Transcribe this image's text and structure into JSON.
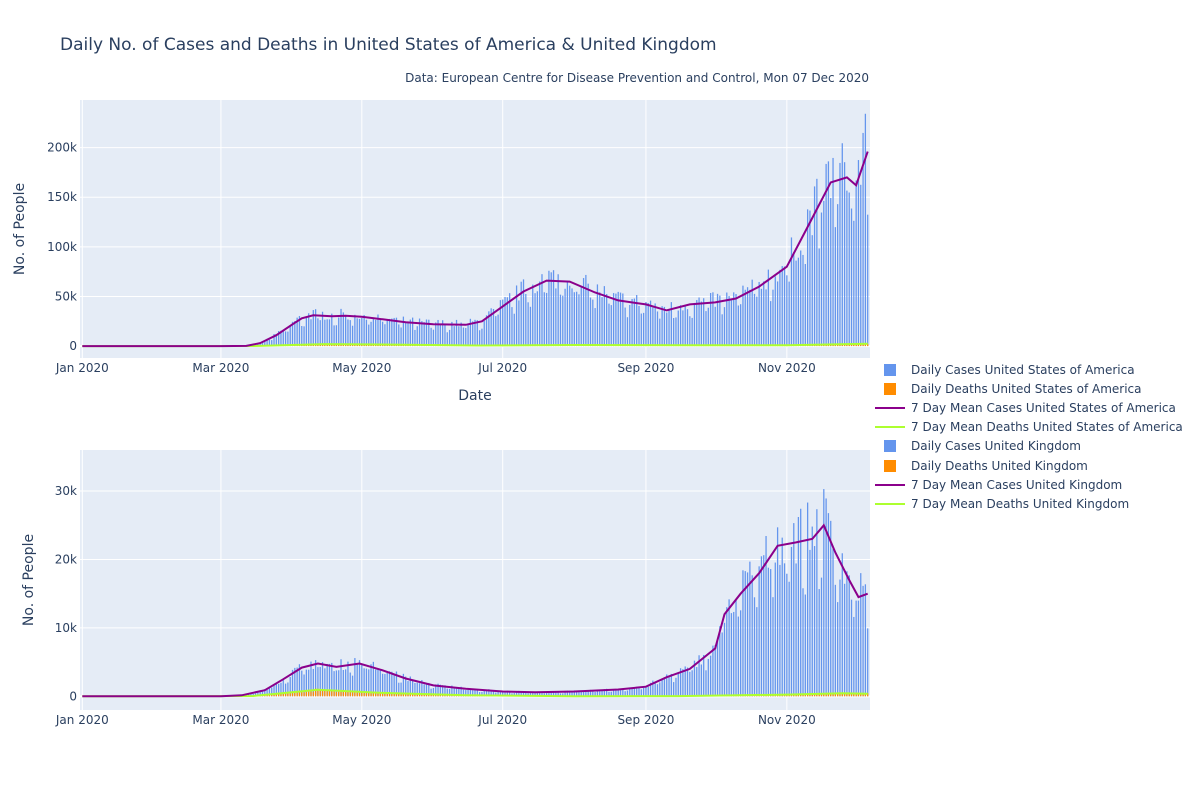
{
  "title": "Daily No. of Cases and Deaths in United States of America & United Kingdom",
  "subtitle": "Data: European Centre for Disease Prevention and Control, Mon 07 Dec 2020",
  "colors": {
    "daily_cases": "#6495ED",
    "daily_deaths": "#FF8C00",
    "mean_cases": "#8B008B",
    "mean_deaths": "#ADFF2F",
    "plot_bg": "#E5ECF6",
    "grid": "#ffffff"
  },
  "legend": [
    {
      "label": "Daily Cases United States of America",
      "kind": "bar",
      "color": "#6495ED"
    },
    {
      "label": "Daily Deaths United States of America",
      "kind": "bar",
      "color": "#FF8C00"
    },
    {
      "label": "7 Day Mean Cases United States of America",
      "kind": "line",
      "color": "#8B008B"
    },
    {
      "label": "7 Day Mean Deaths United States of America",
      "kind": "line",
      "color": "#ADFF2F"
    },
    {
      "label": "Daily Cases United Kingdom",
      "kind": "bar",
      "color": "#6495ED"
    },
    {
      "label": "Daily Deaths United Kingdom",
      "kind": "bar",
      "color": "#FF8C00"
    },
    {
      "label": "7 Day Mean Cases United Kingdom",
      "kind": "line",
      "color": "#8B008B"
    },
    {
      "label": "7 Day Mean Deaths United Kingdom",
      "kind": "line",
      "color": "#ADFF2F"
    }
  ],
  "chart_data": [
    {
      "type": "bar",
      "country": "United States of America",
      "xlabel": "Date",
      "ylabel": "No. of People",
      "xlim": [
        "2019-12-31",
        "2020-12-07"
      ],
      "ylim": [
        -12000,
        248000
      ],
      "x_ticks": [
        {
          "date": "2020-01-01",
          "label": "Jan 2020"
        },
        {
          "date": "2020-03-01",
          "label": "Mar 2020"
        },
        {
          "date": "2020-05-01",
          "label": "May 2020"
        },
        {
          "date": "2020-07-01",
          "label": "Jul 2020"
        },
        {
          "date": "2020-09-01",
          "label": "Sep 2020"
        },
        {
          "date": "2020-11-01",
          "label": "Nov 2020"
        }
      ],
      "y_ticks": [
        {
          "value": 0,
          "label": "0"
        },
        {
          "value": 50000,
          "label": "50k"
        },
        {
          "value": 100000,
          "label": "100k"
        },
        {
          "value": 150000,
          "label": "150k"
        },
        {
          "value": 200000,
          "label": "200k"
        }
      ],
      "mean_cases": [
        [
          "2020-01-01",
          0
        ],
        [
          "2020-02-01",
          0
        ],
        [
          "2020-03-01",
          20
        ],
        [
          "2020-03-12",
          200
        ],
        [
          "2020-03-18",
          3000
        ],
        [
          "2020-03-25",
          11000
        ],
        [
          "2020-04-01",
          22000
        ],
        [
          "2020-04-05",
          28000
        ],
        [
          "2020-04-10",
          31000
        ],
        [
          "2020-04-18",
          30000
        ],
        [
          "2020-04-24",
          30500
        ],
        [
          "2020-05-01",
          29500
        ],
        [
          "2020-05-10",
          27000
        ],
        [
          "2020-05-20",
          24000
        ],
        [
          "2020-06-01",
          22000
        ],
        [
          "2020-06-15",
          21500
        ],
        [
          "2020-06-22",
          25000
        ],
        [
          "2020-07-01",
          40000
        ],
        [
          "2020-07-10",
          55000
        ],
        [
          "2020-07-20",
          66000
        ],
        [
          "2020-07-30",
          65000
        ],
        [
          "2020-08-10",
          54000
        ],
        [
          "2020-08-20",
          46000
        ],
        [
          "2020-09-01",
          42000
        ],
        [
          "2020-09-10",
          36000
        ],
        [
          "2020-09-20",
          42000
        ],
        [
          "2020-10-01",
          44000
        ],
        [
          "2020-10-10",
          48000
        ],
        [
          "2020-10-20",
          60000
        ],
        [
          "2020-11-01",
          80000
        ],
        [
          "2020-11-10",
          120000
        ],
        [
          "2020-11-20",
          165000
        ],
        [
          "2020-11-27",
          170000
        ],
        [
          "2020-12-01",
          162000
        ],
        [
          "2020-12-06",
          196000
        ]
      ],
      "mean_deaths": [
        [
          "2020-01-01",
          0
        ],
        [
          "2020-03-15",
          50
        ],
        [
          "2020-04-15",
          2000
        ],
        [
          "2020-05-15",
          1500
        ],
        [
          "2020-06-20",
          600
        ],
        [
          "2020-08-01",
          1100
        ],
        [
          "2020-09-20",
          750
        ],
        [
          "2020-11-01",
          900
        ],
        [
          "2020-12-06",
          2300
        ]
      ],
      "daily_deaths_peak": 4500
    },
    {
      "type": "bar",
      "country": "United Kingdom",
      "xlabel": "",
      "ylabel": "No. of People",
      "xlim": [
        "2019-12-31",
        "2020-12-07"
      ],
      "ylim": [
        -2000,
        36000
      ],
      "x_ticks": [
        {
          "date": "2020-01-01",
          "label": "Jan 2020"
        },
        {
          "date": "2020-03-01",
          "label": "Mar 2020"
        },
        {
          "date": "2020-05-01",
          "label": "May 2020"
        },
        {
          "date": "2020-07-01",
          "label": "Jul 2020"
        },
        {
          "date": "2020-09-01",
          "label": "Sep 2020"
        },
        {
          "date": "2020-11-01",
          "label": "Nov 2020"
        }
      ],
      "y_ticks": [
        {
          "value": 0,
          "label": "0"
        },
        {
          "value": 10000,
          "label": "10k"
        },
        {
          "value": 20000,
          "label": "20k"
        },
        {
          "value": 30000,
          "label": "30k"
        }
      ],
      "mean_cases": [
        [
          "2020-01-01",
          0
        ],
        [
          "2020-03-01",
          10
        ],
        [
          "2020-03-10",
          150
        ],
        [
          "2020-03-20",
          900
        ],
        [
          "2020-03-28",
          2500
        ],
        [
          "2020-04-05",
          4200
        ],
        [
          "2020-04-12",
          4800
        ],
        [
          "2020-04-20",
          4300
        ],
        [
          "2020-04-30",
          4800
        ],
        [
          "2020-05-10",
          3800
        ],
        [
          "2020-05-20",
          2600
        ],
        [
          "2020-06-01",
          1600
        ],
        [
          "2020-06-15",
          1100
        ],
        [
          "2020-07-01",
          700
        ],
        [
          "2020-07-15",
          600
        ],
        [
          "2020-08-01",
          700
        ],
        [
          "2020-08-20",
          1000
        ],
        [
          "2020-09-01",
          1400
        ],
        [
          "2020-09-10",
          2800
        ],
        [
          "2020-09-20",
          4000
        ],
        [
          "2020-10-01",
          7000
        ],
        [
          "2020-10-05",
          12000
        ],
        [
          "2020-10-12",
          15000
        ],
        [
          "2020-10-20",
          18000
        ],
        [
          "2020-10-28",
          22000
        ],
        [
          "2020-11-05",
          22500
        ],
        [
          "2020-11-12",
          23000
        ],
        [
          "2020-11-17",
          25000
        ],
        [
          "2020-11-22",
          21000
        ],
        [
          "2020-11-28",
          17000
        ],
        [
          "2020-12-02",
          14500
        ],
        [
          "2020-12-06",
          15000
        ]
      ],
      "mean_deaths": [
        [
          "2020-01-01",
          0
        ],
        [
          "2020-03-15",
          40
        ],
        [
          "2020-04-12",
          950
        ],
        [
          "2020-05-10",
          500
        ],
        [
          "2020-06-15",
          150
        ],
        [
          "2020-08-01",
          20
        ],
        [
          "2020-09-15",
          30
        ],
        [
          "2020-11-01",
          250
        ],
        [
          "2020-11-25",
          450
        ],
        [
          "2020-12-06",
          380
        ]
      ],
      "daily_deaths_peak": 1200
    }
  ]
}
